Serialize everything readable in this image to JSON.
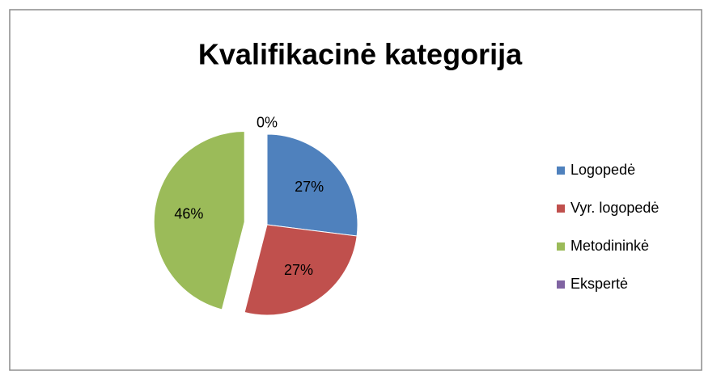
{
  "chart_data": {
    "type": "pie",
    "title": "Kvalifikacinė kategorija",
    "categories": [
      "Logopedė",
      "Vyr. logopedė",
      "Metodininkė",
      "Ekspertė"
    ],
    "values": [
      27,
      27,
      46,
      0
    ],
    "value_labels": [
      "27%",
      "27%",
      "46%",
      "0%"
    ],
    "colors": [
      "#4f81bd",
      "#c0504d",
      "#9bbb59",
      "#8064a2"
    ],
    "legend": "right"
  }
}
